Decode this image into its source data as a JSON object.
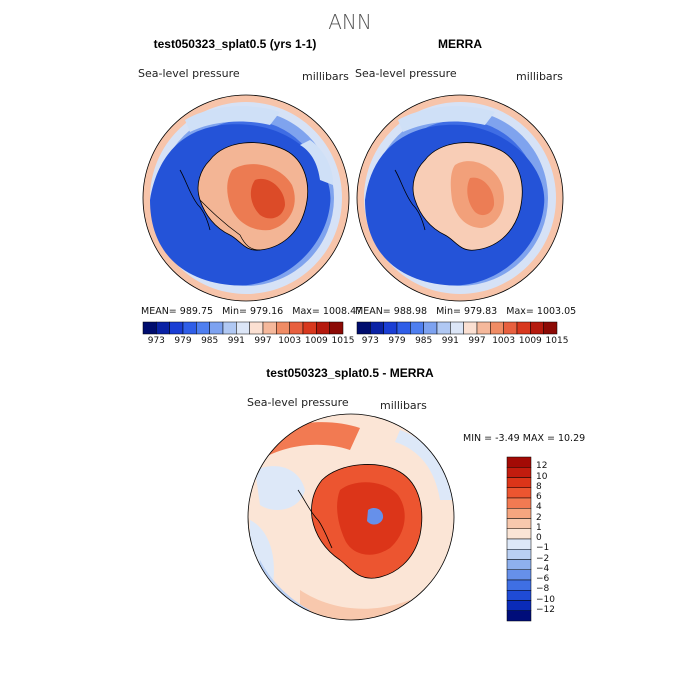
{
  "page_title": "ANN",
  "panels": [
    {
      "title": "test050323_splat0.5 (yrs 1-1)",
      "field_label": "Sea-level pressure",
      "units_label": "millibars",
      "stats": {
        "mean_label": "MEAN=",
        "mean": "989.75",
        "min_label": "Min=",
        "min": "979.16",
        "max_label": "Max=",
        "max": "1008.47"
      }
    },
    {
      "title": "MERRA",
      "field_label": "Sea-level pressure",
      "units_label": "millibars",
      "stats": {
        "mean_label": "MEAN=",
        "mean": "988.98",
        "min_label": "Min=",
        "min": "979.83",
        "max_label": "Max=",
        "max": "1003.05"
      }
    },
    {
      "title": "test050323_splat0.5 - MERRA",
      "field_label": "Sea-level pressure",
      "units_label": "millibars",
      "stats": {
        "min_label": "MIN =",
        "min": "-3.49",
        "max_label": "MAX =",
        "max": "10.29"
      }
    }
  ],
  "colorbar_top": {
    "labels": [
      "973",
      "979",
      "985",
      "991",
      "997",
      "1003",
      "1009",
      "1015"
    ],
    "colors": [
      "#000d6e",
      "#0a22a5",
      "#1a3ed4",
      "#2f5ee8",
      "#4f7ff0",
      "#7da2f0",
      "#b0c8f3",
      "#dce6f7",
      "#fbe0d2",
      "#f5b89b",
      "#f08c65",
      "#e8603f",
      "#d8381e",
      "#b51a0e",
      "#8c0a05"
    ]
  },
  "colorbar_diff": {
    "labels": [
      "12",
      "10",
      "8",
      "6",
      "4",
      "2",
      "1",
      "0",
      "−1",
      "−2",
      "−4",
      "−6",
      "−8",
      "−10",
      "−12"
    ],
    "colors": [
      "#a30a05",
      "#c21c0e",
      "#dc3519",
      "#ec5530",
      "#f27a52",
      "#f6a57f",
      "#f8c8ad",
      "#fbe5d6",
      "#dde8f8",
      "#b9cff3",
      "#8eb0ee",
      "#6690ea",
      "#3f6fe4",
      "#1f4bd6",
      "#0a2bb8",
      "#000d7a"
    ]
  }
}
